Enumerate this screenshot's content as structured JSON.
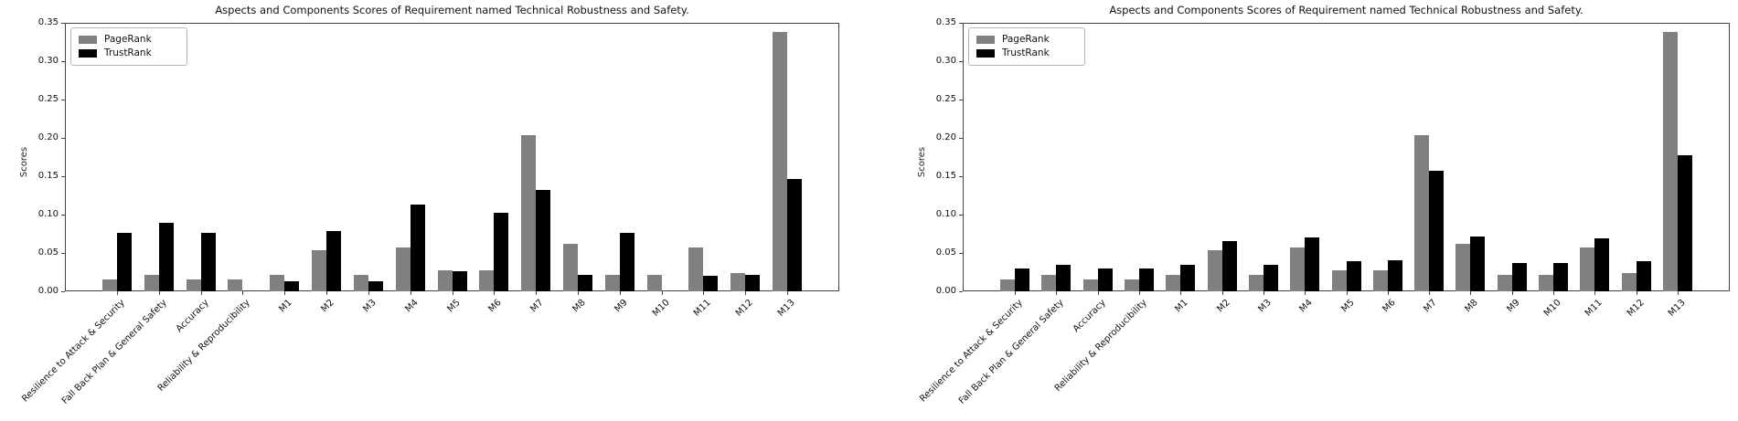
{
  "figure": {
    "background": "#ffffff",
    "axis_color": "#444444",
    "text_color": "#111111"
  },
  "chart_data": [
    {
      "type": "bar",
      "title": "Aspects and Components Scores of Requirement named Technical Robustness and Safety.",
      "xlabel": "",
      "ylabel": "Scores",
      "ylim": [
        0,
        0.35
      ],
      "ytick_labels": [
        "0.00",
        "0.05",
        "0.10",
        "0.15",
        "0.20",
        "0.25",
        "0.30",
        "0.35"
      ],
      "legend_position": "upper left",
      "grid": false,
      "categories": [
        "Resilience to Attack & Security",
        "Fall Back Plan & General Safety",
        "Accuracy",
        "Reliability & Reproducibility",
        "M1",
        "M2",
        "M3",
        "M4",
        "M5",
        "M6",
        "M7",
        "M8",
        "M9",
        "M10",
        "M11",
        "M12",
        "M13"
      ],
      "series": [
        {
          "name": "PageRank",
          "color": "#808080",
          "values": [
            0.016,
            0.021,
            0.016,
            0.016,
            0.021,
            0.054,
            0.021,
            0.057,
            0.027,
            0.027,
            0.203,
            0.062,
            0.022,
            0.022,
            0.057,
            0.024,
            0.338
          ]
        },
        {
          "name": "TrustRank",
          "color": "#000000",
          "values": [
            0.076,
            0.089,
            0.076,
            0,
            0.013,
            0.078,
            0.013,
            0.113,
            0.026,
            0.102,
            0.132,
            0.022,
            0.076,
            0,
            0.02,
            0.022,
            0.146
          ]
        }
      ]
    },
    {
      "type": "bar",
      "title": "Aspects and Components Scores of Requirement named Technical Robustness and Safety.",
      "xlabel": "",
      "ylabel": "Scores",
      "ylim": [
        0,
        0.35
      ],
      "ytick_labels": [
        "0.00",
        "0.05",
        "0.10",
        "0.15",
        "0.20",
        "0.25",
        "0.30",
        "0.35"
      ],
      "legend_position": "upper left",
      "grid": false,
      "categories": [
        "Resilience to Attack & Security",
        "Fall Back Plan & General Safety",
        "Accuracy",
        "Reliability & Reproducibility",
        "M1",
        "M2",
        "M3",
        "M4",
        "M5",
        "M6",
        "M7",
        "M8",
        "M9",
        "M10",
        "M11",
        "M12",
        "M13"
      ],
      "series": [
        {
          "name": "PageRank",
          "color": "#808080",
          "values": [
            0.016,
            0.021,
            0.016,
            0.016,
            0.021,
            0.054,
            0.021,
            0.057,
            0.027,
            0.027,
            0.203,
            0.062,
            0.022,
            0.022,
            0.057,
            0.024,
            0.338
          ]
        },
        {
          "name": "TrustRank",
          "color": "#000000",
          "values": [
            0.03,
            0.035,
            0.03,
            0.03,
            0.035,
            0.066,
            0.035,
            0.07,
            0.039,
            0.04,
            0.157,
            0.071,
            0.037,
            0.037,
            0.069,
            0.039,
            0.177
          ]
        }
      ]
    }
  ]
}
